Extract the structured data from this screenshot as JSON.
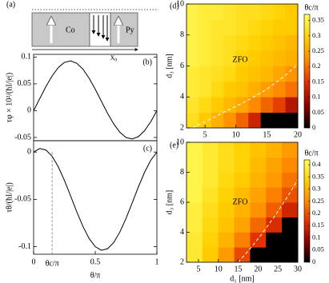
{
  "diagram": {
    "label": "(a)",
    "left": "Co",
    "right": "Py",
    "position": "x₀"
  },
  "chart_data": [
    {
      "type": "line",
      "label": "(b)",
      "ylabel": "τφ × 10²/(ħI/|e|)",
      "color": "#000000",
      "x": [
        0,
        0.05,
        0.1,
        0.15,
        0.2,
        0.25,
        0.3,
        0.35,
        0.4,
        0.45,
        0.5,
        0.55,
        0.6,
        0.65,
        0.7,
        0.75,
        0.8,
        0.85,
        0.9,
        0.95,
        1
      ],
      "values": [
        0,
        0.0226,
        0.045,
        0.0648,
        0.0804,
        0.09,
        0.0928,
        0.0884,
        0.0774,
        0.0606,
        0.04,
        0.0174,
        -0.005,
        -0.0248,
        -0.0404,
        -0.05,
        -0.0528,
        -0.0484,
        -0.0374,
        -0.0206,
        0
      ],
      "xlim": [
        0,
        1
      ],
      "ylim": [
        -0.056,
        0.105
      ],
      "yticks": [
        -0.05,
        0,
        0.05,
        0.1
      ]
    },
    {
      "type": "line",
      "label": "(c)",
      "ylabel": "τθ/(ħI/|e|)",
      "xlabel": "θ/π",
      "color": "#000000",
      "x": [
        0,
        0.05,
        0.1,
        0.15,
        0.2,
        0.25,
        0.3,
        0.35,
        0.4,
        0.45,
        0.5,
        0.55,
        0.6,
        0.65,
        0.7,
        0.75,
        0.8,
        0.85,
        0.9,
        0.95,
        1
      ],
      "values": [
        0,
        0.0037,
        0.0022,
        -0.0044,
        -0.0156,
        -0.03,
        -0.0464,
        -0.0632,
        -0.0786,
        -0.0914,
        -0.1,
        -0.1038,
        -0.1022,
        -0.0956,
        -0.0844,
        -0.07,
        -0.0536,
        -0.0368,
        -0.0214,
        -0.0087,
        0
      ],
      "xlim": [
        0,
        1
      ],
      "ylim": [
        -0.108,
        0.012
      ],
      "xticks": [
        0,
        0.5,
        1
      ],
      "yticks": [
        -0.1,
        -0.05,
        0
      ],
      "threshold": {
        "value": 0.15,
        "label": "θc/π"
      }
    },
    {
      "type": "heatmap",
      "label": "(d)",
      "ylabel": "d₃ [nm]",
      "annotation": "ZFO",
      "x": [
        3,
        5,
        7,
        9,
        11,
        13,
        15,
        17,
        19
      ],
      "y": [
        2.5,
        3.5,
        4.5,
        5.5,
        6.5,
        7.5,
        8.5,
        9.5
      ],
      "z": [
        [
          0.32,
          0.29,
          0.26,
          0.23,
          0.19,
          0.13,
          0,
          0,
          0
        ],
        [
          0.33,
          0.31,
          0.29,
          0.27,
          0.25,
          0.22,
          0.19,
          0.16,
          0.11
        ],
        [
          0.34,
          0.33,
          0.31,
          0.29,
          0.28,
          0.26,
          0.24,
          0.22,
          0.2
        ],
        [
          0.34,
          0.33,
          0.32,
          0.31,
          0.29,
          0.28,
          0.27,
          0.25,
          0.23
        ],
        [
          0.35,
          0.34,
          0.33,
          0.32,
          0.3,
          0.29,
          0.28,
          0.27,
          0.26
        ],
        [
          0.35,
          0.34,
          0.33,
          0.32,
          0.31,
          0.3,
          0.29,
          0.28,
          0.27
        ],
        [
          0.35,
          0.34,
          0.33,
          0.33,
          0.32,
          0.31,
          0.3,
          0.29,
          0.29
        ],
        [
          0.35,
          0.34,
          0.34,
          0.33,
          0.32,
          0.32,
          0.31,
          0.3,
          0.29
        ]
      ],
      "xlim": [
        2,
        20
      ],
      "ylim": [
        2,
        10
      ],
      "xticks": [
        5,
        10,
        15,
        20
      ],
      "yticks": [
        2,
        4,
        6,
        8,
        10
      ],
      "colormap": [
        "#000000",
        "#8b0000",
        "#e03000",
        "#ff8c00",
        "#ffd000",
        "#ffff60"
      ],
      "colorbar": {
        "title": "θc/π",
        "lim": [
          0,
          0.37
        ],
        "ticks": [
          0,
          0.05,
          0.1,
          0.15,
          0.2,
          0.25,
          0.3,
          0.35
        ]
      },
      "boundary": {
        "color": "#ffffff",
        "x": [
          3,
          6,
          9,
          12,
          15,
          18,
          20
        ],
        "y": [
          2,
          2.6,
          3.2,
          3.8,
          4.5,
          5.4,
          6.1
        ]
      }
    },
    {
      "type": "heatmap",
      "label": "(e)",
      "ylabel": "d₃ [nm]",
      "xlabel": "d₁ [nm]",
      "annotation": "ZFO",
      "x": [
        4,
        8,
        12,
        16,
        20,
        24,
        28
      ],
      "y": [
        2.5,
        3.5,
        4.5,
        5.5,
        6.5,
        7.5,
        8.5,
        9.5
      ],
      "z": [
        [
          0.38,
          0.33,
          0.27,
          0.19,
          0,
          0,
          0
        ],
        [
          0.38,
          0.34,
          0.3,
          0.24,
          0.17,
          0,
          0
        ],
        [
          0.39,
          0.35,
          0.32,
          0.28,
          0.22,
          0.16,
          0
        ],
        [
          0.39,
          0.36,
          0.33,
          0.3,
          0.26,
          0.21,
          0.15
        ],
        [
          0.4,
          0.37,
          0.34,
          0.31,
          0.28,
          0.24,
          0.2
        ],
        [
          0.4,
          0.38,
          0.35,
          0.33,
          0.3,
          0.27,
          0.23
        ],
        [
          0.4,
          0.38,
          0.36,
          0.34,
          0.31,
          0.28,
          0.25
        ],
        [
          0.4,
          0.38,
          0.36,
          0.34,
          0.32,
          0.3,
          0.27
        ]
      ],
      "xlim": [
        2,
        30
      ],
      "ylim": [
        2,
        10
      ],
      "xticks": [
        5,
        10,
        15,
        20,
        25,
        30
      ],
      "yticks": [
        2,
        4,
        6,
        8,
        10
      ],
      "colormap": [
        "#000000",
        "#8b0000",
        "#e03000",
        "#ff8c00",
        "#ffd000",
        "#ffff60"
      ],
      "colorbar": {
        "title": "θc/π",
        "lim": [
          0,
          0.42
        ],
        "ticks": [
          0,
          0.05,
          0.1,
          0.15,
          0.2,
          0.25,
          0.3,
          0.35,
          0.4
        ]
      },
      "boundary": {
        "color": "#ffffff",
        "x": [
          15,
          18,
          21,
          24,
          27,
          30
        ],
        "y": [
          2,
          2.9,
          3.9,
          5,
          6.2,
          7.5
        ]
      }
    }
  ]
}
